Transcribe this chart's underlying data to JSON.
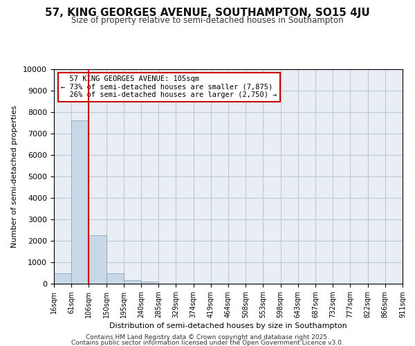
{
  "title": "57, KING GEORGES AVENUE, SOUTHAMPTON, SO15 4JU",
  "subtitle": "Size of property relative to semi-detached houses in Southampton",
  "xlabel": "Distribution of semi-detached houses by size in Southampton",
  "ylabel": "Number of semi-detached properties",
  "property_size": 105,
  "property_label": "57 KING GEORGES AVENUE: 105sqm",
  "smaller_pct": 73,
  "smaller_count": 7875,
  "larger_pct": 26,
  "larger_count": 2750,
  "bins": [
    16,
    61,
    106,
    150,
    195,
    240,
    285,
    329,
    374,
    419,
    464,
    508,
    553,
    598,
    643,
    687,
    732,
    777,
    822,
    866,
    911
  ],
  "counts": [
    500,
    7625,
    2250,
    500,
    150,
    100,
    0,
    0,
    0,
    0,
    0,
    0,
    0,
    0,
    0,
    0,
    0,
    0,
    0,
    0
  ],
  "bar_color": "#c8d8e8",
  "bar_edge_color": "#7a9cb8",
  "red_line_color": "#cc0000",
  "box_edge_color": "#cc0000",
  "background_color": "#e8eef4",
  "grid_color": "#c0c8d0",
  "ylim": [
    0,
    10000
  ],
  "yticks": [
    0,
    1000,
    2000,
    3000,
    4000,
    5000,
    6000,
    7000,
    8000,
    9000,
    10000
  ],
  "footer1": "Contains HM Land Registry data © Crown copyright and database right 2025.",
  "footer2": "Contains public sector information licensed under the Open Government Licence v3.0."
}
